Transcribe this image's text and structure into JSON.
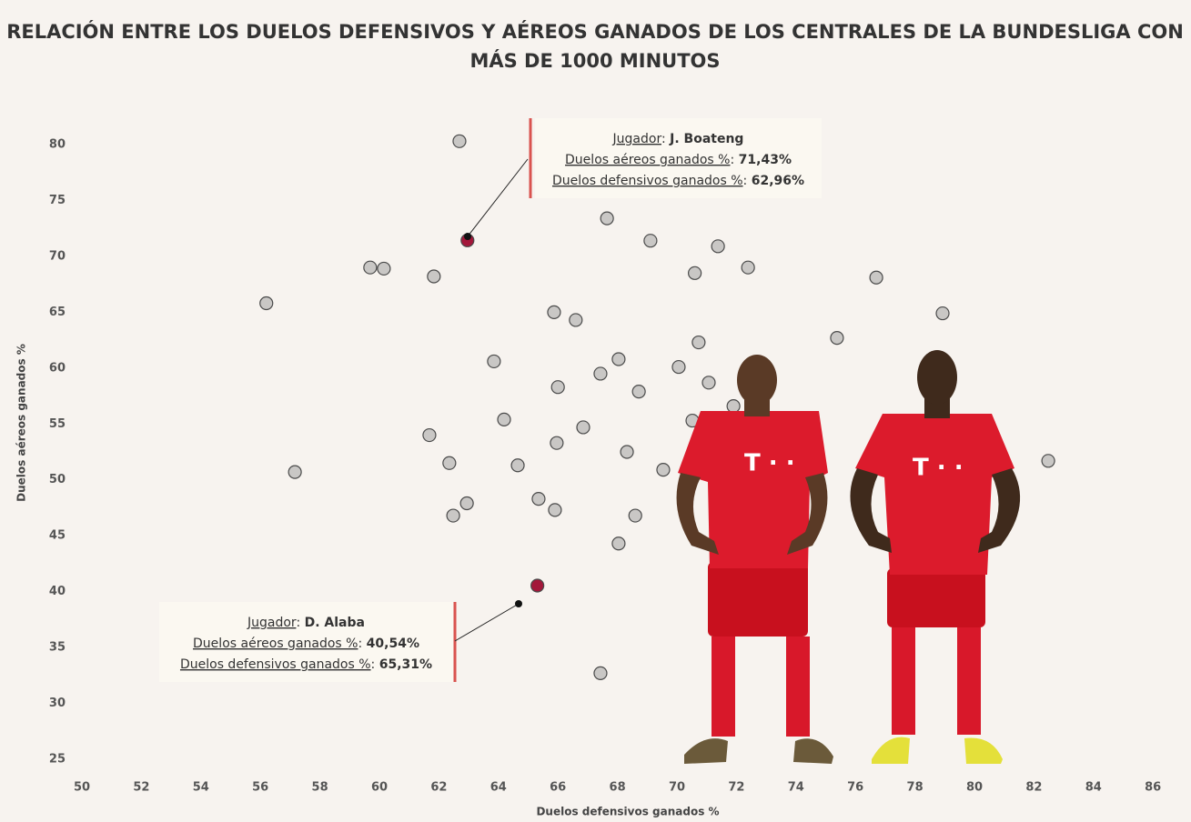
{
  "chart_data": {
    "type": "scatter",
    "title": "RELACIÓN ENTRE LOS DUELOS DEFENSIVOS Y AÉREOS GANADOS DE LOS CENTRALES DE LA BUNDESLIGA CON MÁS DE 1000 MINUTOS",
    "x_label": "Duelos defensivos ganados %",
    "y_label": "Duelos aéreos ganados %",
    "x": [
      62.69,
      62.96,
      67.65,
      69.11,
      71.38,
      59.69,
      60.15,
      61.83,
      70.6,
      72.39,
      76.7,
      56.2,
      65.87,
      66.6,
      78.93,
      75.38,
      70.73,
      63.85,
      68.04,
      67.43,
      70.06,
      71.07,
      66.0,
      68.72,
      71.9,
      64.19,
      61.68,
      66.85,
      70.52,
      65.96,
      80.46,
      68.32,
      62.35,
      64.65,
      57.16,
      69.54,
      82.48,
      62.94,
      65.35,
      65.9,
      62.48,
      68.6,
      68.04,
      65.31,
      67.43
    ],
    "values": [
      80.3,
      71.43,
      73.4,
      71.4,
      70.9,
      69.0,
      68.9,
      68.2,
      68.5,
      69.0,
      68.1,
      65.8,
      65.0,
      64.3,
      64.9,
      62.7,
      62.3,
      60.6,
      60.8,
      59.5,
      60.1,
      58.7,
      58.3,
      57.9,
      56.6,
      55.4,
      54.0,
      54.7,
      55.3,
      53.3,
      54.9,
      52.5,
      51.5,
      51.3,
      50.7,
      50.9,
      51.7,
      47.9,
      48.3,
      47.3,
      46.8,
      46.8,
      44.3,
      40.54,
      32.7
    ],
    "colors": [
      "#c9c7c5",
      "#a3173a",
      "#c9c7c5",
      "#c9c7c5",
      "#c9c7c5",
      "#c9c7c5",
      "#c9c7c5",
      "#c9c7c5",
      "#c9c7c5",
      "#c9c7c5",
      "#c9c7c5",
      "#c9c7c5",
      "#c9c7c5",
      "#c9c7c5",
      "#c9c7c5",
      "#c9c7c5",
      "#c9c7c5",
      "#c9c7c5",
      "#c9c7c5",
      "#c9c7c5",
      "#c9c7c5",
      "#c9c7c5",
      "#c9c7c5",
      "#c9c7c5",
      "#c9c7c5",
      "#c9c7c5",
      "#c9c7c5",
      "#c9c7c5",
      "#c9c7c5",
      "#c9c7c5",
      "#c9c7c5",
      "#c9c7c5",
      "#c9c7c5",
      "#c9c7c5",
      "#c9c7c5",
      "#c9c7c5",
      "#c9c7c5",
      "#c9c7c5",
      "#c9c7c5",
      "#c9c7c5",
      "#c9c7c5",
      "#c9c7c5",
      "#c9c7c5",
      "#a3173a",
      "#c9c7c5"
    ],
    "xlim": [
      49,
      87
    ],
    "xticks": [
      50,
      52,
      54,
      56,
      58,
      60,
      62,
      64,
      66,
      68,
      70,
      72,
      74,
      76,
      78,
      80,
      82,
      84,
      86
    ],
    "ylim": [
      24,
      82
    ],
    "yticks": [
      25,
      30,
      35,
      40,
      45,
      50,
      55,
      60,
      65,
      70,
      75,
      80
    ],
    "grid": false,
    "annotations": [
      {
        "player_label": "Jugador",
        "player": "J. Boateng",
        "rows": [
          {
            "label": "Duelos aéreos ganados %",
            "value": "71,43%"
          },
          {
            "label": "Duelos defensivos ganados %",
            "value": "62,96%"
          }
        ]
      },
      {
        "player_label": "Jugador",
        "player": "D. Alaba",
        "rows": [
          {
            "label": "Duelos aéreos ganados %",
            "value": "40,54%"
          },
          {
            "label": "Duelos defensivos ganados %",
            "value": "65,31%"
          }
        ]
      }
    ]
  }
}
